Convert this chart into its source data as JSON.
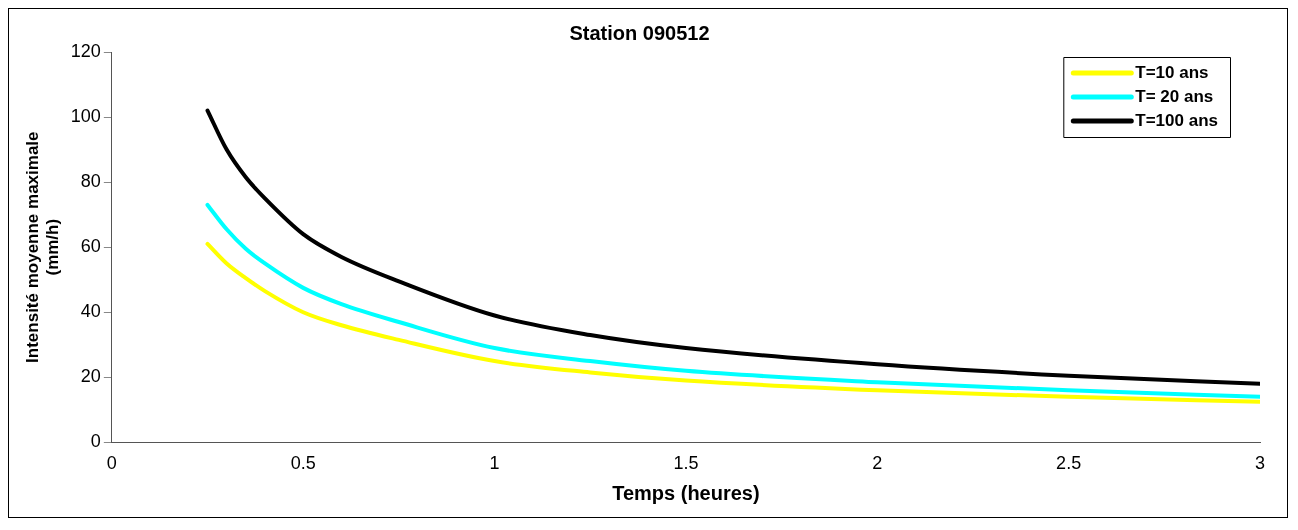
{
  "chart_data": {
    "type": "line",
    "title": "Station 090512",
    "xlabel": "Temps (heures)",
    "ylabel": "Intensité moyenne maximale (mm/h)",
    "x": [
      0.25,
      0.3,
      0.35,
      0.4,
      0.5,
      0.6,
      0.75,
      1,
      1.25,
      1.5,
      2,
      2.5,
      3
    ],
    "series": [
      {
        "name": "T=10 ans",
        "color": "#ffff00",
        "values": [
          61,
          55,
          50.5,
          46.5,
          40,
          36,
          31.5,
          25,
          21.5,
          19,
          16,
          14,
          12.5
        ]
      },
      {
        "name": "T= 20 ans",
        "color": "#00ffff",
        "values": [
          73,
          65.5,
          59.5,
          55,
          47.5,
          42.5,
          37,
          29,
          25,
          22,
          18.5,
          16,
          14
        ]
      },
      {
        "name": "T=100 ans",
        "color": "#000000",
        "values": [
          102,
          90,
          81.5,
          75,
          64,
          57,
          49.5,
          39,
          33,
          29,
          24,
          20.5,
          18
        ]
      }
    ],
    "xlim": [
      0,
      3
    ],
    "xticks": [
      0,
      0.5,
      1,
      1.5,
      2,
      2.5,
      3
    ],
    "ylim": [
      0,
      120
    ],
    "yticks": [
      0,
      20,
      40,
      60,
      80,
      100,
      120
    ],
    "legend": "top right",
    "marker": "none",
    "line_style": "solid",
    "grid": false
  }
}
